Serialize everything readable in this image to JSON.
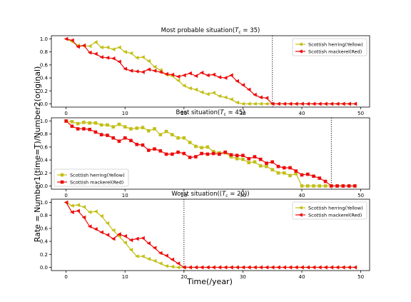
{
  "figure": {
    "ylabel": "Rate = Number1(time=T)/Number2(original)",
    "xlabel": "Time(/year)"
  },
  "chart_data": [
    {
      "type": "line",
      "title": "Most probable situation(T_c = 35)",
      "title_parts": {
        "pre": "Most probable situation(",
        "T": "T",
        "sub": "c",
        "post": " = 35)"
      },
      "xlim": [
        -2.5,
        51.5
      ],
      "ylim": [
        -0.05,
        1.05
      ],
      "xticks": [
        0,
        10,
        20,
        30,
        40,
        50
      ],
      "yticks": [
        0.0,
        0.2,
        0.4,
        0.6,
        0.8,
        1.0
      ],
      "ytick_labels": [
        "0.0",
        "0.2",
        "0.4",
        "0.6",
        "0.8",
        "1.0"
      ],
      "vline": 35,
      "legend_position": "upper right",
      "series": [
        {
          "name": "Scottish herring(Yellow)",
          "color": "#c2bf17",
          "marker": "triangle-left",
          "values": [
            1.0,
            0.96,
            0.9,
            0.89,
            0.89,
            0.95,
            0.87,
            0.87,
            0.84,
            0.87,
            0.8,
            0.78,
            0.71,
            0.72,
            0.66,
            0.57,
            0.52,
            0.45,
            0.43,
            0.36,
            0.28,
            0.24,
            0.22,
            0.18,
            0.15,
            0.17,
            0.12,
            0.1,
            0.07,
            0.02,
            0.0,
            0.0,
            0.0,
            0.0,
            0.0,
            0.0,
            0.0,
            0.0,
            0.0,
            0.0,
            0.0,
            0.0,
            0.0,
            0.0,
            0.0,
            0.0,
            0.0,
            0.0,
            0.0,
            0.0
          ]
        },
        {
          "name": "Scottish mackerel(Red)",
          "color": "#ee0a0a",
          "marker": "triangle-left",
          "values": [
            1.0,
            0.98,
            0.88,
            0.9,
            0.79,
            0.77,
            0.72,
            0.71,
            0.7,
            0.65,
            0.54,
            0.51,
            0.5,
            0.49,
            0.53,
            0.51,
            0.49,
            0.46,
            0.45,
            0.42,
            0.44,
            0.47,
            0.43,
            0.48,
            0.44,
            0.45,
            0.41,
            0.4,
            0.44,
            0.35,
            0.29,
            0.22,
            0.14,
            0.1,
            0.09,
            0.0,
            0.0,
            0.0,
            0.0,
            0.0,
            0.0,
            0.0,
            0.0,
            0.0,
            0.0,
            0.0,
            0.0,
            0.0,
            0.0,
            0.0
          ]
        }
      ]
    },
    {
      "type": "line",
      "title": "Best situation(T_c = 45)",
      "title_parts": {
        "pre": "Best situation(",
        "T": "T",
        "sub": "c",
        "post": " = 45)"
      },
      "xlim": [
        -2.5,
        51.5
      ],
      "ylim": [
        -0.05,
        1.05
      ],
      "xticks": [
        0,
        10,
        20,
        30,
        40,
        50
      ],
      "yticks": [
        0.0,
        0.2,
        0.4,
        0.6,
        0.8,
        1.0
      ],
      "ytick_labels": [
        "0.0",
        "0.2",
        "0.4",
        "0.6",
        "0.8",
        "1.0"
      ],
      "vline": 45,
      "legend_position": "lower left",
      "series": [
        {
          "name": "Scottish herring(Yellow)",
          "color": "#c2bf17",
          "marker": "square",
          "values": [
            1.0,
            0.99,
            0.96,
            0.98,
            0.97,
            0.97,
            0.94,
            0.94,
            0.91,
            0.95,
            0.91,
            0.88,
            0.89,
            0.9,
            0.85,
            0.88,
            0.79,
            0.84,
            0.79,
            0.74,
            0.74,
            0.67,
            0.61,
            0.59,
            0.6,
            0.53,
            0.51,
            0.51,
            0.45,
            0.42,
            0.41,
            0.36,
            0.37,
            0.31,
            0.3,
            0.25,
            0.2,
            0.2,
            0.16,
            0.19,
            0.0,
            0.0,
            0.0,
            0.0,
            0.0,
            0.0,
            0.0,
            0.0,
            0.0,
            0.0
          ]
        },
        {
          "name": "Scottish mackerel(Red)",
          "color": "#ee0a0a",
          "marker": "square",
          "values": [
            1.0,
            0.92,
            0.88,
            0.88,
            0.87,
            0.83,
            0.79,
            0.78,
            0.74,
            0.69,
            0.74,
            0.7,
            0.64,
            0.63,
            0.55,
            0.57,
            0.54,
            0.49,
            0.49,
            0.52,
            0.5,
            0.44,
            0.45,
            0.5,
            0.49,
            0.5,
            0.49,
            0.52,
            0.48,
            0.47,
            0.47,
            0.42,
            0.45,
            0.41,
            0.35,
            0.37,
            0.3,
            0.28,
            0.28,
            0.23,
            0.17,
            0.18,
            0.15,
            0.12,
            0.07,
            0.0,
            0.0,
            0.0,
            0.0,
            0.0
          ]
        }
      ]
    },
    {
      "type": "line",
      "title": "Worst situation((T_c = 20))",
      "title_parts": {
        "pre": "Worst situation((",
        "T": "T",
        "sub": "c",
        "post": " = 20))"
      },
      "xlim": [
        -2.5,
        51.5
      ],
      "ylim": [
        -0.05,
        1.05
      ],
      "xticks": [
        0,
        10,
        20,
        30,
        40,
        50
      ],
      "yticks": [
        0.0,
        0.2,
        0.4,
        0.6,
        0.8,
        1.0
      ],
      "ytick_labels": [
        "0.0",
        "0.2",
        "0.4",
        "0.6",
        "0.8",
        "1.0"
      ],
      "vline": 20,
      "legend_position": "upper right",
      "series": [
        {
          "name": "Scottish herring(Yellow)",
          "color": "#c2bf17",
          "marker": "triangle-left",
          "values": [
            1.0,
            0.95,
            0.96,
            0.93,
            0.85,
            0.86,
            0.79,
            0.68,
            0.57,
            0.48,
            0.38,
            0.27,
            0.17,
            0.17,
            0.13,
            0.1,
            0.06,
            0.02,
            0.01,
            0.0,
            0.0,
            0.0,
            0.0,
            0.0,
            0.0,
            0.0,
            0.0,
            0.0,
            0.0,
            0.0,
            0.0,
            0.0,
            0.0,
            0.0,
            0.0,
            0.0,
            0.0,
            0.0,
            0.0,
            0.0,
            0.0,
            0.0,
            0.0,
            0.0,
            0.0,
            0.0,
            0.0,
            0.0,
            0.0,
            0.0
          ]
        },
        {
          "name": "Scottish mackerel(Red)",
          "color": "#ee0a0a",
          "marker": "triangle-left",
          "values": [
            1.0,
            0.85,
            0.87,
            0.77,
            0.63,
            0.59,
            0.54,
            0.5,
            0.44,
            0.51,
            0.48,
            0.42,
            0.44,
            0.45,
            0.37,
            0.3,
            0.22,
            0.18,
            0.12,
            0.06,
            0.0,
            0.0,
            0.0,
            0.0,
            0.0,
            0.0,
            0.0,
            0.0,
            0.0,
            0.0,
            0.0,
            0.0,
            0.0,
            0.0,
            0.0,
            0.0,
            0.0,
            0.0,
            0.0,
            0.0,
            0.0,
            0.0,
            0.0,
            0.0,
            0.0,
            0.0,
            0.0,
            0.0,
            0.0,
            0.0
          ]
        }
      ]
    }
  ]
}
